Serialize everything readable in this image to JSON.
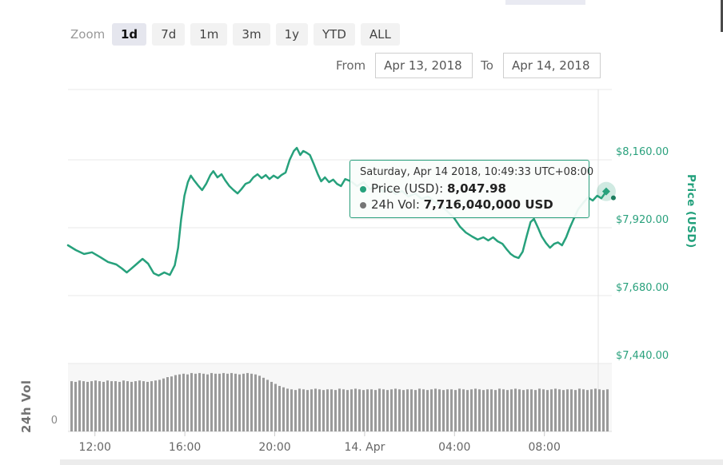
{
  "toolbar": {
    "zoom_label": "Zoom",
    "buttons": [
      {
        "label": "1d",
        "selected": true
      },
      {
        "label": "7d",
        "selected": false
      },
      {
        "label": "1m",
        "selected": false
      },
      {
        "label": "3m",
        "selected": false
      },
      {
        "label": "1y",
        "selected": false
      },
      {
        "label": "YTD",
        "selected": false
      },
      {
        "label": "ALL",
        "selected": false
      }
    ]
  },
  "range_selector": {
    "from_label": "From",
    "from_value": "Apr 13, 2018",
    "to_label": "To",
    "to_value": "Apr 14, 2018"
  },
  "tooltip": {
    "header": "Saturday, Apr 14 2018, 10:49:33 UTC+08:00",
    "rows": [
      {
        "label": "Price (USD)",
        "value": "8,047.98",
        "bullet_color": "#27a17c"
      },
      {
        "label": "24h Vol",
        "value": "7,716,040,000 USD",
        "bullet_color": "#757575"
      }
    ]
  },
  "chart_data": {
    "type": "line",
    "title": "",
    "x_axis": {
      "tick_labels": [
        "12:00",
        "16:00",
        "20:00",
        "14. Apr",
        "04:00",
        "08:00"
      ],
      "tick_t_minutes": [
        72,
        312,
        552,
        792,
        1032,
        1272
      ],
      "span_minutes": 1452
    },
    "y_axis": {
      "title": "Price (USD)",
      "tick_labels": [
        "$8,160.00",
        "$7,920.00",
        "$7,680.00",
        "$7,440.00"
      ],
      "tick_values": [
        8160,
        7920,
        7680,
        7440
      ],
      "range": [
        7380,
        8230
      ]
    },
    "price_series": {
      "name": "Price (USD)",
      "color": "#27a17c",
      "t_unit": "minutes from series start (Apr 13 2018, ~10:49)",
      "points": [
        [
          0,
          7858
        ],
        [
          21,
          7841
        ],
        [
          43,
          7827
        ],
        [
          64,
          7833
        ],
        [
          86,
          7816
        ],
        [
          107,
          7799
        ],
        [
          129,
          7790
        ],
        [
          144,
          7776
        ],
        [
          157,
          7762
        ],
        [
          167,
          7773
        ],
        [
          182,
          7790
        ],
        [
          199,
          7810
        ],
        [
          214,
          7793
        ],
        [
          229,
          7759
        ],
        [
          242,
          7751
        ],
        [
          257,
          7762
        ],
        [
          272,
          7753
        ],
        [
          285,
          7787
        ],
        [
          294,
          7849
        ],
        [
          302,
          7948
        ],
        [
          311,
          8033
        ],
        [
          320,
          8081
        ],
        [
          328,
          8104
        ],
        [
          337,
          8087
        ],
        [
          347,
          8070
        ],
        [
          358,
          8053
        ],
        [
          369,
          8075
        ],
        [
          380,
          8106
        ],
        [
          388,
          8120
        ],
        [
          399,
          8098
        ],
        [
          410,
          8109
        ],
        [
          420,
          8087
        ],
        [
          431,
          8067
        ],
        [
          442,
          8053
        ],
        [
          453,
          8041
        ],
        [
          463,
          8056
        ],
        [
          474,
          8075
        ],
        [
          485,
          8081
        ],
        [
          495,
          8098
        ],
        [
          506,
          8109
        ],
        [
          517,
          8095
        ],
        [
          528,
          8106
        ],
        [
          538,
          8092
        ],
        [
          549,
          8104
        ],
        [
          560,
          8095
        ],
        [
          570,
          8106
        ],
        [
          581,
          8115
        ],
        [
          592,
          8160
        ],
        [
          603,
          8191
        ],
        [
          611,
          8202
        ],
        [
          620,
          8177
        ],
        [
          628,
          8191
        ],
        [
          637,
          8185
        ],
        [
          646,
          8177
        ],
        [
          656,
          8146
        ],
        [
          667,
          8109
        ],
        [
          676,
          8084
        ],
        [
          686,
          8098
        ],
        [
          697,
          8081
        ],
        [
          708,
          8090
        ],
        [
          718,
          8075
        ],
        [
          729,
          8067
        ],
        [
          740,
          8092
        ],
        [
          755,
          8084
        ],
        [
          772,
          8067
        ],
        [
          789,
          8081
        ],
        [
          806,
          8056
        ],
        [
          824,
          8070
        ],
        [
          841,
          8047
        ],
        [
          858,
          8058
        ],
        [
          875,
          8039
        ],
        [
          892,
          8050
        ],
        [
          909,
          8030
        ],
        [
          927,
          8041
        ],
        [
          944,
          8022
        ],
        [
          961,
          8030
        ],
        [
          978,
          8013
        ],
        [
          995,
          7999
        ],
        [
          1012,
          7979
        ],
        [
          1030,
          7956
        ],
        [
          1047,
          7923
        ],
        [
          1062,
          7903
        ],
        [
          1079,
          7889
        ],
        [
          1094,
          7878
        ],
        [
          1109,
          7886
        ],
        [
          1122,
          7875
        ],
        [
          1135,
          7886
        ],
        [
          1147,
          7872
        ],
        [
          1160,
          7863
        ],
        [
          1171,
          7844
        ],
        [
          1182,
          7827
        ],
        [
          1192,
          7818
        ],
        [
          1203,
          7813
        ],
        [
          1214,
          7835
        ],
        [
          1225,
          7892
        ],
        [
          1235,
          7940
        ],
        [
          1244,
          7951
        ],
        [
          1255,
          7920
        ],
        [
          1265,
          7889
        ],
        [
          1276,
          7866
        ],
        [
          1287,
          7849
        ],
        [
          1298,
          7863
        ],
        [
          1308,
          7868
        ],
        [
          1319,
          7858
        ],
        [
          1330,
          7886
        ],
        [
          1340,
          7920
        ],
        [
          1351,
          7953
        ],
        [
          1362,
          7985
        ],
        [
          1375,
          8007
        ],
        [
          1388,
          8027
        ],
        [
          1401,
          8016
        ],
        [
          1413,
          8033
        ],
        [
          1424,
          8024
        ],
        [
          1437,
          8047.98
        ]
      ]
    },
    "volume_series": {
      "name": "24h Vol",
      "color": "#9a9a9a",
      "axis_zero_label": "0",
      "bar_heights_fraction": [
        0.74,
        0.73,
        0.75,
        0.74,
        0.73,
        0.74,
        0.75,
        0.74,
        0.73,
        0.75,
        0.74,
        0.74,
        0.73,
        0.75,
        0.74,
        0.73,
        0.74,
        0.75,
        0.74,
        0.73,
        0.74,
        0.75,
        0.76,
        0.78,
        0.8,
        0.81,
        0.83,
        0.84,
        0.85,
        0.84,
        0.86,
        0.85,
        0.86,
        0.85,
        0.84,
        0.86,
        0.85,
        0.85,
        0.86,
        0.85,
        0.86,
        0.85,
        0.84,
        0.85,
        0.86,
        0.85,
        0.84,
        0.82,
        0.79,
        0.76,
        0.73,
        0.7,
        0.67,
        0.65,
        0.63,
        0.62,
        0.61,
        0.63,
        0.62,
        0.61,
        0.62,
        0.63,
        0.62,
        0.61,
        0.62,
        0.62,
        0.61,
        0.63,
        0.62,
        0.61,
        0.62,
        0.63,
        0.62,
        0.61,
        0.62,
        0.62,
        0.61,
        0.63,
        0.62,
        0.61,
        0.62,
        0.63,
        0.62,
        0.61,
        0.62,
        0.62,
        0.61,
        0.63,
        0.62,
        0.61,
        0.62,
        0.63,
        0.62,
        0.61,
        0.62,
        0.62,
        0.61,
        0.63,
        0.62,
        0.61,
        0.62,
        0.63,
        0.62,
        0.61,
        0.62,
        0.62,
        0.61,
        0.63,
        0.62,
        0.61,
        0.62,
        0.63,
        0.62,
        0.61,
        0.62,
        0.62,
        0.61,
        0.63,
        0.62,
        0.61,
        0.62,
        0.63,
        0.62,
        0.61,
        0.62,
        0.62,
        0.61,
        0.63,
        0.62,
        0.61,
        0.62,
        0.63,
        0.62,
        0.61,
        0.62
      ]
    },
    "volume_axis_label": "24h Vol",
    "last_point": {
      "date": "Saturday, Apr 14 2018",
      "time": "10:49:33 UTC+08:00",
      "price_usd": 8047.98,
      "volume_24h_usd": 7716040000
    }
  },
  "colors": {
    "accent_green": "#27a17c",
    "y_label_green": "#2aa17d",
    "grid": "#e8e8e8",
    "crosshair": "#e3e3e3",
    "volume_bar": "#9a9a9a",
    "volume_pane_bg": "#f7f7f7",
    "axis_text": "#666666"
  }
}
